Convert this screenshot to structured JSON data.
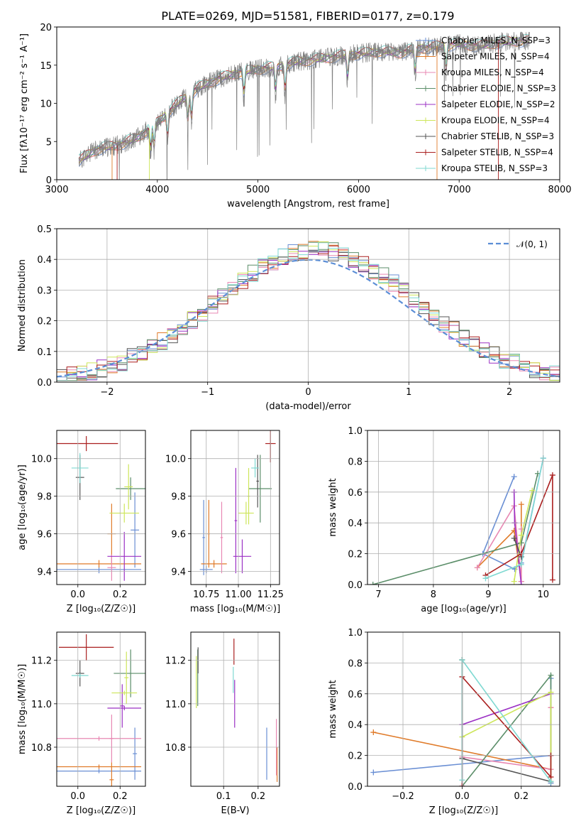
{
  "title": "PLATE=0269, MJD=51581, FIBERID=0177, z=0.179",
  "colors": [
    "#6a8fd4",
    "#e07b2a",
    "#e888b3",
    "#5b8e69",
    "#9b30c4",
    "#cde65a",
    "#555555",
    "#aa1f1f",
    "#7fd9d2"
  ],
  "chart_data": [
    {
      "id": "spectrum",
      "type": "line",
      "xlabel": "wavelength [Angstrom, rest frame]",
      "ylabel": "Flux [fλ10⁻¹⁷ erg cm⁻² s⁻¹ A⁻¹]",
      "xlim": [
        3000,
        8000
      ],
      "ylim": [
        0,
        20
      ],
      "xticks": [
        "3000",
        "4000",
        "5000",
        "6000",
        "7000",
        "8000"
      ],
      "yticks": [
        "0",
        "5",
        "10",
        "15",
        "20"
      ],
      "grid": false,
      "legend_position": "top-right",
      "legend": [
        "Chabrier MILES, N_SSP=3",
        "Salpeter MILES, N_SSP=4",
        "Kroupa MILES, N_SSP=4",
        "Chabrier ELODIE, N_SSP=3",
        "Salpeter ELODIE, N_SSP=2",
        "Kroupa ELODIE, N_SSP=4",
        "Chabrier STELIB, N_SSP=3",
        "Salpeter STELIB, N_SSP=4",
        "Kroupa STELIB, N_SSP=3"
      ],
      "data_range": [
        3220,
        7700
      ],
      "continuum": {
        "x": [
          3220,
          3400,
          3600,
          3800,
          4000,
          4200,
          4400,
          4600,
          4800,
          5000,
          5200,
          5400,
          5600,
          5800,
          6000,
          6200,
          6400,
          6600,
          6800,
          7000,
          7200,
          7400,
          7600
        ],
        "y": [
          2.5,
          4.0,
          4.5,
          5.5,
          7.5,
          10.0,
          12.0,
          13.2,
          14.0,
          14.5,
          14.8,
          15.5,
          15.8,
          16.2,
          16.5,
          16.8,
          16.6,
          17.2,
          17.5,
          17.8,
          17.5,
          18.0,
          18.2
        ]
      }
    },
    {
      "id": "residuals",
      "type": "line",
      "xlabel": "(data-model)/error",
      "ylabel": "Normed distribution",
      "xlim": [
        -2.5,
        2.5
      ],
      "ylim": [
        0,
        0.5
      ],
      "xticks": [
        "−2",
        "−1",
        "0",
        "1",
        "2"
      ],
      "yticks": [
        "0.0",
        "0.1",
        "0.2",
        "0.3",
        "0.4",
        "0.5"
      ],
      "grid": true,
      "legend_position": "top-right",
      "legend": [
        "𝒩(0, 1)"
      ],
      "bin_width": 0.1
    },
    {
      "id": "age-vs-Z",
      "type": "scatter",
      "xlabel": "Z [log₁₀(Z/Z☉)]",
      "ylabel": "age  [log₁₀(age/yr)]",
      "xlim": [
        -0.1,
        0.32
      ],
      "ylim": [
        9.33,
        10.15
      ],
      "xticks": [
        "0.0",
        "0.2"
      ],
      "yticks": [
        "9.4",
        "9.6",
        "9.8",
        "10.0"
      ],
      "grid": true,
      "points": [
        {
          "c": 0,
          "x": 0.1,
          "xerr": 0.2,
          "y": 9.41,
          "yerr": 0.02
        },
        {
          "c": 0,
          "x": 0.27,
          "xerr": 0.02,
          "y": 9.62,
          "yerr": 0.2
        },
        {
          "c": 1,
          "x": 0.1,
          "xerr": 0.2,
          "y": 9.44,
          "yerr": 0.02
        },
        {
          "c": 1,
          "x": 0.16,
          "xerr": 0.02,
          "y": 9.6,
          "yerr": 0.16
        },
        {
          "c": 2,
          "x": 0.16,
          "xerr": 0.02,
          "y": 9.42,
          "yerr": 0.07
        },
        {
          "c": 3,
          "x": 0.25,
          "xerr": 0.07,
          "y": 9.84,
          "yerr": 0.06
        },
        {
          "c": 4,
          "x": 0.22,
          "xerr": 0.08,
          "y": 9.48,
          "yerr": 0.13
        },
        {
          "c": 5,
          "x": 0.22,
          "xerr": 0.07,
          "y": 9.71,
          "yerr": 0.05
        },
        {
          "c": 5,
          "x": 0.24,
          "xerr": 0.02,
          "y": 9.85,
          "yerr": 0.12
        },
        {
          "c": 6,
          "x": 0.01,
          "xerr": 0.02,
          "y": 9.9,
          "yerr": 0.12
        },
        {
          "c": 7,
          "x": 0.04,
          "xerr": 0.15,
          "y": 10.08,
          "yerr": 0.04
        },
        {
          "c": 8,
          "x": 0.01,
          "xerr": 0.04,
          "y": 9.95,
          "yerr": 0.08
        }
      ]
    },
    {
      "id": "age-vs-mass",
      "type": "scatter",
      "xlabel": "mass [log₁₀(M/M☉)]",
      "ylabel": "",
      "xlim": [
        10.63,
        11.32
      ],
      "ylim": [
        9.33,
        10.15
      ],
      "xticks": [
        "10.75",
        "11.00",
        "11.25"
      ],
      "yticks": [
        "9.4",
        "9.6",
        "9.8",
        "10.0"
      ],
      "grid": true,
      "points": [
        {
          "c": 0,
          "x": 10.75,
          "xerr": 0.05,
          "y": 9.41,
          "yerr": 0.02
        },
        {
          "c": 0,
          "x": 10.73,
          "xerr": 0.01,
          "y": 9.58,
          "yerr": 0.2
        },
        {
          "c": 1,
          "x": 10.81,
          "xerr": 0.1,
          "y": 9.44,
          "yerr": 0.02
        },
        {
          "c": 1,
          "x": 10.77,
          "xerr": 0.01,
          "y": 9.6,
          "yerr": 0.18
        },
        {
          "c": 2,
          "x": 10.87,
          "xerr": 0.01,
          "y": 9.58,
          "yerr": 0.19
        },
        {
          "c": 3,
          "x": 11.17,
          "xerr": 0.09,
          "y": 9.84,
          "yerr": 0.18
        },
        {
          "c": 4,
          "x": 11.03,
          "xerr": 0.07,
          "y": 9.48,
          "yerr": 0.09
        },
        {
          "c": 4,
          "x": 10.98,
          "xerr": 0.01,
          "y": 9.67,
          "yerr": 0.28
        },
        {
          "c": 5,
          "x": 11.06,
          "xerr": 0.06,
          "y": 9.71,
          "yerr": 0.06
        },
        {
          "c": 5,
          "x": 11.08,
          "xerr": 0.01,
          "y": 9.8,
          "yerr": 0.15
        },
        {
          "c": 6,
          "x": 11.15,
          "xerr": 0.01,
          "y": 9.88,
          "yerr": 0.14
        },
        {
          "c": 7,
          "x": 11.25,
          "xerr": 0.04,
          "y": 10.08,
          "yerr": 0.1
        },
        {
          "c": 8,
          "x": 11.13,
          "xerr": 0.03,
          "y": 9.95,
          "yerr": 0.05
        }
      ]
    },
    {
      "id": "mass-weight-vs-age",
      "type": "line",
      "xlabel": "age  [log₁₀(age/yr)]",
      "ylabel": "mass weight",
      "xlim": [
        6.8,
        10.3
      ],
      "ylim": [
        0,
        1
      ],
      "xticks": [
        "7",
        "8",
        "9",
        "10"
      ],
      "yticks": [
        "0.0",
        "0.2",
        "0.4",
        "0.6",
        "0.8",
        "1.0"
      ],
      "grid": true,
      "series": [
        {
          "c": 0,
          "x": [
            9.47,
            8.9,
            9.48,
            9.6,
            10.0
          ],
          "y": [
            0.7,
            0.2,
            0.1,
            0.14,
            0.82
          ]
        },
        {
          "c": 1,
          "x": [
            8.8,
            9.47,
            9.6,
            9.6
          ],
          "y": [
            0.11,
            0.35,
            0.02,
            0.52
          ]
        },
        {
          "c": 2,
          "x": [
            8.8,
            9.47,
            9.6,
            9.6
          ],
          "y": [
            0.11,
            0.51,
            0.02,
            0.36
          ]
        },
        {
          "c": 3,
          "x": [
            6.9,
            9.6,
            9.9
          ],
          "y": [
            0.0,
            0.27,
            0.72
          ]
        },
        {
          "c": 4,
          "x": [
            9.47,
            9.48,
            9.6
          ],
          "y": [
            0.6,
            0.4,
            0.0
          ]
        },
        {
          "c": 5,
          "x": [
            9.47,
            9.6,
            9.8
          ],
          "y": [
            0.02,
            0.32,
            0.61
          ]
        },
        {
          "c": 6,
          "x": [
            9.47,
            9.6
          ],
          "y": [
            0.3,
            0.18
          ]
        },
        {
          "c": 7,
          "x": [
            8.95,
            9.6,
            10.17,
            10.17
          ],
          "y": [
            0.06,
            0.2,
            0.71,
            0.03
          ]
        },
        {
          "c": 8,
          "x": [
            8.95,
            9.6,
            10.0
          ],
          "y": [
            0.04,
            0.13,
            0.82
          ]
        }
      ]
    },
    {
      "id": "mass-vs-Z",
      "type": "scatter",
      "xlabel": "Z [log₁₀(Z/Z☉)]",
      "ylabel": "mass [log₁₀(M/M☉)]",
      "xlim": [
        -0.1,
        0.32
      ],
      "ylim": [
        10.62,
        11.33
      ],
      "xticks": [
        "0.0",
        "0.2"
      ],
      "yticks": [
        "10.8",
        "11.0",
        "11.2"
      ],
      "grid": true,
      "points": [
        {
          "c": 0,
          "x": 0.1,
          "xerr": 0.2,
          "y": 10.69,
          "yerr": 0.01
        },
        {
          "c": 0,
          "x": 0.27,
          "xerr": 0.01,
          "y": 10.77,
          "yerr": 0.12
        },
        {
          "c": 1,
          "x": 0.1,
          "xerr": 0.2,
          "y": 10.71,
          "yerr": 0.01
        },
        {
          "c": 1,
          "x": 0.16,
          "xerr": 0.01,
          "y": 10.65,
          "yerr": 0.08
        },
        {
          "c": 2,
          "x": 0.1,
          "xerr": 0.2,
          "y": 10.84,
          "yerr": 0.01
        },
        {
          "c": 2,
          "x": 0.16,
          "xerr": 0.01,
          "y": 10.84,
          "yerr": 0.11
        },
        {
          "c": 3,
          "x": 0.25,
          "xerr": 0.08,
          "y": 11.14,
          "yerr": 0.11
        },
        {
          "c": 4,
          "x": 0.22,
          "xerr": 0.08,
          "y": 10.98,
          "yerr": 0.01
        },
        {
          "c": 4,
          "x": 0.21,
          "xerr": 0.01,
          "y": 10.99,
          "yerr": 0.1
        },
        {
          "c": 5,
          "x": 0.22,
          "xerr": 0.06,
          "y": 11.05,
          "yerr": 0.01
        },
        {
          "c": 5,
          "x": 0.23,
          "xerr": 0.01,
          "y": 11.12,
          "yerr": 0.12
        },
        {
          "c": 6,
          "x": 0.01,
          "xerr": 0.02,
          "y": 11.14,
          "yerr": 0.06
        },
        {
          "c": 7,
          "x": 0.04,
          "xerr": 0.13,
          "y": 11.26,
          "yerr": 0.06
        },
        {
          "c": 8,
          "x": 0.01,
          "xerr": 0.04,
          "y": 11.13,
          "yerr": 0.01
        }
      ]
    },
    {
      "id": "mass-vs-EBV",
      "type": "scatter",
      "xlabel": "E(B-V)",
      "ylabel": "",
      "xlim": [
        0.005,
        0.262
      ],
      "ylim": [
        10.62,
        11.33
      ],
      "xticks": [
        "0.1",
        "0.2"
      ],
      "yticks": [
        "10.8",
        "11.0",
        "11.2"
      ],
      "grid": true,
      "points": [
        {
          "c": 0,
          "x": 0.225,
          "xerr": 0,
          "y": 10.77,
          "yerr": 0.12
        },
        {
          "c": 1,
          "x": 0.255,
          "xerr": 0,
          "y": 10.72,
          "yerr": 0.08
        },
        {
          "c": 2,
          "x": 0.253,
          "xerr": 0,
          "y": 10.8,
          "yerr": 0.13
        },
        {
          "c": 3,
          "x": 0.025,
          "xerr": 0,
          "y": 11.12,
          "yerr": 0.13
        },
        {
          "c": 4,
          "x": 0.132,
          "xerr": 0,
          "y": 11.0,
          "yerr": 0.11
        },
        {
          "c": 5,
          "x": 0.021,
          "xerr": 0,
          "y": 11.1,
          "yerr": 0.12
        },
        {
          "c": 6,
          "x": 0.026,
          "xerr": 0,
          "y": 11.2,
          "yerr": 0.06
        },
        {
          "c": 7,
          "x": 0.13,
          "xerr": 0,
          "y": 11.24,
          "yerr": 0.06
        },
        {
          "c": 8,
          "x": 0.128,
          "xerr": 0,
          "y": 11.11,
          "yerr": 0.06
        }
      ]
    },
    {
      "id": "mass-weight-vs-Z",
      "type": "line",
      "xlabel": "Z [log₁₀(Z/Z☉)]",
      "ylabel": "mass weight",
      "xlim": [
        -0.32,
        0.33
      ],
      "ylim": [
        0,
        1
      ],
      "xticks": [
        "−0.2",
        "0.0",
        "0.2"
      ],
      "yticks": [
        "0.0",
        "0.2",
        "0.4",
        "0.6",
        "0.8",
        "1.0"
      ],
      "grid": true,
      "series": [
        {
          "c": 0,
          "x": [
            -0.3,
            0.3,
            0.3,
            0.3
          ],
          "y": [
            0.09,
            0.2,
            0.7,
            0.02
          ]
        },
        {
          "c": 1,
          "x": [
            -0.3,
            0.3,
            0.3
          ],
          "y": [
            0.35,
            0.11,
            0.51
          ]
        },
        {
          "c": 2,
          "x": [
            0.0,
            0.0,
            0.3,
            0.3
          ],
          "y": [
            0.0,
            0.19,
            0.11,
            0.51
          ]
        },
        {
          "c": 3,
          "x": [
            0.0,
            0.0,
            0.3,
            0.3
          ],
          "y": [
            0.82,
            0.0,
            0.72,
            0.03
          ]
        },
        {
          "c": 4,
          "x": [
            0.0,
            0.0,
            0.3
          ],
          "y": [
            0.0,
            0.4,
            0.6
          ]
        },
        {
          "c": 5,
          "x": [
            0.0,
            0.3,
            0.3
          ],
          "y": [
            0.32,
            0.61,
            0.03
          ]
        },
        {
          "c": 6,
          "x": [
            0.0,
            0.0,
            0.3
          ],
          "y": [
            0.82,
            0.18,
            0.03
          ]
        },
        {
          "c": 7,
          "x": [
            0.0,
            0.0,
            0.3,
            0.3
          ],
          "y": [
            0.0,
            0.71,
            0.06,
            0.2
          ]
        },
        {
          "c": 8,
          "x": [
            0.0,
            0.0,
            0.3
          ],
          "y": [
            0.04,
            0.82,
            0.03
          ]
        }
      ]
    }
  ]
}
